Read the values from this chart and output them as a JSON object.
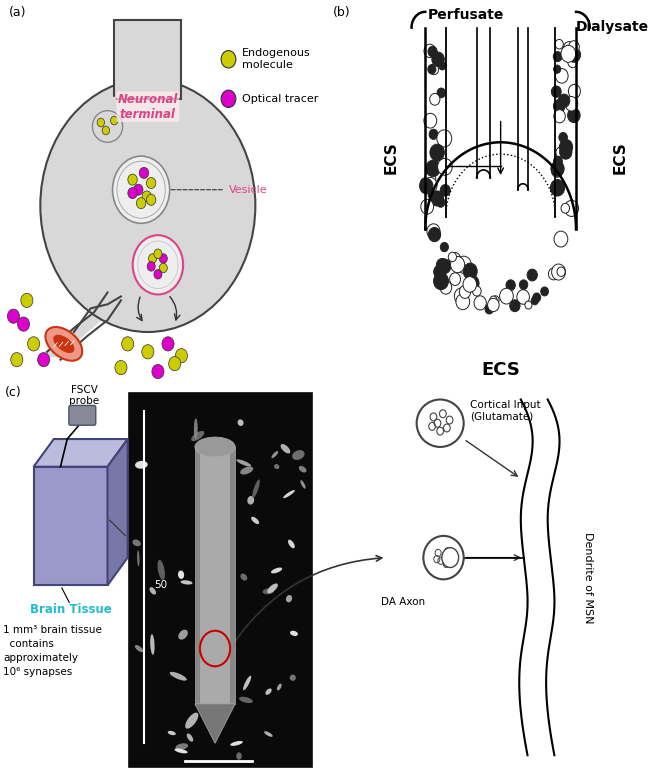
{
  "fig_width": 6.72,
  "fig_height": 7.75,
  "bg_color": "#ffffff",
  "panel_a": {
    "label": "(a)",
    "neuron_color": "#cccccc",
    "neuron_edge": "#333333",
    "terminal_label": "Neuronal\nterminal",
    "terminal_label_color": "#dd4488",
    "vesicle_label": "Vesicle",
    "endogenous_label": "Endogenous\nmolecule",
    "optical_label": "Optical tracer",
    "endo_color": "#cccc00",
    "optical_color": "#dd00cc"
  },
  "panel_b": {
    "label": "(b)",
    "perfusate_label": "Perfusate",
    "dialysate_label": "Dialysate",
    "ecs_label": "ECS",
    "ecs_bottom_label": "ECS"
  },
  "panel_c": {
    "label": "(c)",
    "fscv_label": "FSCV\nprobe",
    "brain_tissue_label": "Brain Tissue",
    "brain_tissue_color": "#22bbcc",
    "info_text": "1 mm³ brain tissue\n  contains\napproximately\n10⁶ synapses",
    "cortical_label": "Cortical Input\n(Glutamate)",
    "dendrite_label": "Dendrite of MSN",
    "da_axon_label": "DA Axon"
  }
}
